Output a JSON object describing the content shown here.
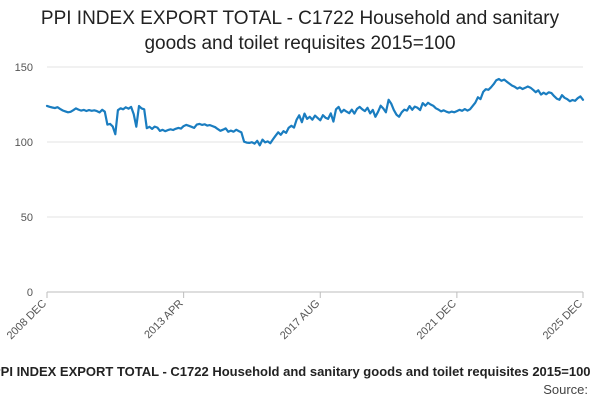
{
  "chart_data": {
    "type": "line",
    "title": "PPI INDEX EXPORT TOTAL - C1722 Household and sanitary goods and toilet requisites 2015=100",
    "xlabel": "",
    "ylabel": "",
    "ylim": [
      0,
      150
    ],
    "y_ticks": [
      0,
      50,
      100,
      150
    ],
    "x_range": [
      "2008-12",
      "2025-12"
    ],
    "x_ticks": [
      "2008 DEC",
      "2013 APR",
      "2017 AUG",
      "2021 DEC",
      "2025 DEC"
    ],
    "grid": "horizontal",
    "line_color": "#1a7dc0",
    "footer": "PPI INDEX EXPORT TOTAL - C1722 Household and sanitary goods and toilet requisites 2015=100",
    "source_label": "Source:",
    "series": [
      {
        "values": [
          [
            "2008-12",
            124.1
          ],
          [
            "2009-01",
            123.5
          ],
          [
            "2009-02",
            123.0
          ],
          [
            "2009-03",
            122.6
          ],
          [
            "2009-04",
            123.2
          ],
          [
            "2009-05",
            122.1
          ],
          [
            "2009-06",
            121.0
          ],
          [
            "2009-07",
            120.4
          ],
          [
            "2009-08",
            119.8
          ],
          [
            "2009-09",
            120.1
          ],
          [
            "2009-10",
            121.2
          ],
          [
            "2009-11",
            122.4
          ],
          [
            "2009-12",
            121.6
          ],
          [
            "2009-13",
            120.9
          ],
          [
            "2010-02",
            121.4
          ],
          [
            "2010-03",
            120.7
          ],
          [
            "2010-04",
            121.3
          ],
          [
            "2010-05",
            120.8
          ],
          [
            "2010-06",
            121.1
          ],
          [
            "2010-07",
            120.6
          ],
          [
            "2010-08",
            119.7
          ],
          [
            "2010-09",
            121.5
          ],
          [
            "2010-10",
            120.2
          ],
          [
            "2010-11",
            111.6
          ],
          [
            "2010-12",
            112.1
          ],
          [
            "2011-01",
            110.4
          ],
          [
            "2011-02",
            105.2
          ],
          [
            "2011-03",
            121.2
          ],
          [
            "2011-04",
            122.5
          ],
          [
            "2011-05",
            121.8
          ],
          [
            "2011-06",
            123.1
          ],
          [
            "2011-07",
            122.2
          ],
          [
            "2011-08",
            123.4
          ],
          [
            "2011-09",
            118.6
          ],
          [
            "2011-10",
            110.2
          ],
          [
            "2011-11",
            124.0
          ],
          [
            "2011-12",
            122.4
          ],
          [
            "2012-01",
            121.8
          ],
          [
            "2012-02",
            109.2
          ],
          [
            "2012-03",
            110.1
          ],
          [
            "2012-04",
            108.7
          ],
          [
            "2012-05",
            110.3
          ],
          [
            "2012-06",
            109.6
          ],
          [
            "2012-07",
            107.4
          ],
          [
            "2012-08",
            108.1
          ],
          [
            "2012-09",
            107.2
          ],
          [
            "2012-10",
            107.9
          ],
          [
            "2012-11",
            108.5
          ],
          [
            "2012-12",
            108.0
          ],
          [
            "2013-01",
            108.8
          ],
          [
            "2013-02",
            109.4
          ],
          [
            "2013-03",
            108.9
          ],
          [
            "2013-04",
            110.6
          ],
          [
            "2013-05",
            111.4
          ],
          [
            "2013-06",
            110.8
          ],
          [
            "2013-07",
            110.1
          ],
          [
            "2013-08",
            109.4
          ],
          [
            "2013-09",
            111.6
          ],
          [
            "2013-10",
            112.1
          ],
          [
            "2013-11",
            111.4
          ],
          [
            "2013-12",
            111.8
          ],
          [
            "2014-01",
            110.9
          ],
          [
            "2014-02",
            111.3
          ],
          [
            "2014-03",
            110.6
          ],
          [
            "2014-04",
            109.9
          ],
          [
            "2014-05",
            108.6
          ],
          [
            "2014-06",
            107.5
          ],
          [
            "2014-07",
            108.2
          ],
          [
            "2014-08",
            109.1
          ],
          [
            "2014-09",
            106.8
          ],
          [
            "2014-10",
            107.6
          ],
          [
            "2014-11",
            106.9
          ],
          [
            "2014-12",
            108.2
          ],
          [
            "2015-01",
            107.3
          ],
          [
            "2015-02",
            106.4
          ],
          [
            "2015-03",
            100.2
          ],
          [
            "2015-04",
            99.6
          ],
          [
            "2015-05",
            99.4
          ],
          [
            "2015-06",
            99.9
          ],
          [
            "2015-07",
            98.9
          ],
          [
            "2015-08",
            100.8
          ],
          [
            "2015-09",
            97.8
          ],
          [
            "2015-10",
            101.6
          ],
          [
            "2015-11",
            99.7
          ],
          [
            "2015-12",
            100.4
          ],
          [
            "2016-01",
            99.2
          ],
          [
            "2016-02",
            101.8
          ],
          [
            "2016-03",
            104.2
          ],
          [
            "2016-04",
            106.5
          ],
          [
            "2016-05",
            104.8
          ],
          [
            "2016-06",
            107.3
          ],
          [
            "2016-07",
            106.1
          ],
          [
            "2016-08",
            109.5
          ],
          [
            "2016-09",
            110.8
          ],
          [
            "2016-10",
            109.6
          ],
          [
            "2016-11",
            114.9
          ],
          [
            "2016-12",
            117.8
          ],
          [
            "2017-01",
            113.2
          ],
          [
            "2017-02",
            118.9
          ],
          [
            "2017-03",
            115.4
          ],
          [
            "2017-04",
            116.8
          ],
          [
            "2017-05",
            114.9
          ],
          [
            "2017-06",
            117.6
          ],
          [
            "2017-07",
            116.1
          ],
          [
            "2017-08",
            114.5
          ],
          [
            "2017-09",
            117.9
          ],
          [
            "2017-10",
            116.2
          ],
          [
            "2017-11",
            115.4
          ],
          [
            "2017-12",
            119.1
          ],
          [
            "2018-01",
            113.6
          ],
          [
            "2018-02",
            121.8
          ],
          [
            "2018-03",
            123.4
          ],
          [
            "2018-04",
            119.7
          ],
          [
            "2018-05",
            121.5
          ],
          [
            "2018-06",
            120.3
          ],
          [
            "2018-07",
            119.2
          ],
          [
            "2018-08",
            121.6
          ],
          [
            "2018-09",
            118.9
          ],
          [
            "2018-10",
            122.1
          ],
          [
            "2018-11",
            123.4
          ],
          [
            "2018-12",
            121.8
          ],
          [
            "2019-01",
            120.6
          ],
          [
            "2019-02",
            122.8
          ],
          [
            "2019-03",
            119.1
          ],
          [
            "2019-04",
            121.4
          ],
          [
            "2019-05",
            116.8
          ],
          [
            "2019-06",
            120.2
          ],
          [
            "2019-07",
            124.2
          ],
          [
            "2019-08",
            122.3
          ],
          [
            "2019-09",
            119.8
          ],
          [
            "2019-10",
            128.1
          ],
          [
            "2019-11",
            125.6
          ],
          [
            "2019-12",
            121.4
          ],
          [
            "2020-01",
            118.2
          ],
          [
            "2020-02",
            116.9
          ],
          [
            "2020-03",
            119.8
          ],
          [
            "2020-04",
            121.6
          ],
          [
            "2020-05",
            120.9
          ],
          [
            "2020-06",
            123.9
          ],
          [
            "2020-07",
            121.5
          ],
          [
            "2020-08",
            123.6
          ],
          [
            "2020-09",
            122.8
          ],
          [
            "2020-10",
            121.3
          ],
          [
            "2020-11",
            125.9
          ],
          [
            "2020-12",
            124.2
          ],
          [
            "2021-01",
            126.1
          ],
          [
            "2021-02",
            125.0
          ],
          [
            "2021-03",
            124.2
          ],
          [
            "2021-04",
            122.5
          ],
          [
            "2021-05",
            121.6
          ],
          [
            "2021-06",
            120.4
          ],
          [
            "2021-07",
            121.1
          ],
          [
            "2021-08",
            120.2
          ],
          [
            "2021-09",
            119.6
          ],
          [
            "2021-10",
            120.3
          ],
          [
            "2021-11",
            119.8
          ],
          [
            "2021-12",
            120.6
          ],
          [
            "2022-01",
            121.5
          ],
          [
            "2022-02",
            120.8
          ],
          [
            "2022-03",
            121.9
          ],
          [
            "2022-04",
            120.9
          ],
          [
            "2022-05",
            121.8
          ],
          [
            "2022-06",
            123.9
          ],
          [
            "2022-07",
            126.2
          ],
          [
            "2022-08",
            129.8
          ],
          [
            "2022-09",
            128.6
          ],
          [
            "2022-10",
            133.4
          ],
          [
            "2022-11",
            135.2
          ],
          [
            "2022-12",
            134.8
          ],
          [
            "2023-01",
            136.5
          ],
          [
            "2023-02",
            138.6
          ],
          [
            "2023-03",
            141.2
          ],
          [
            "2023-04",
            142.0
          ],
          [
            "2023-05",
            140.8
          ],
          [
            "2023-06",
            141.6
          ],
          [
            "2023-07",
            140.2
          ],
          [
            "2023-08",
            138.9
          ],
          [
            "2023-09",
            137.6
          ],
          [
            "2023-10",
            136.8
          ],
          [
            "2023-11",
            135.6
          ],
          [
            "2023-12",
            136.4
          ],
          [
            "2024-01",
            135.3
          ],
          [
            "2024-02",
            136.1
          ],
          [
            "2024-03",
            137.0
          ],
          [
            "2024-04",
            136.2
          ],
          [
            "2024-05",
            134.8
          ],
          [
            "2024-06",
            133.2
          ],
          [
            "2024-07",
            134.5
          ],
          [
            "2024-08",
            131.6
          ],
          [
            "2024-09",
            132.9
          ],
          [
            "2024-10",
            131.8
          ],
          [
            "2024-11",
            133.1
          ],
          [
            "2024-12",
            132.6
          ],
          [
            "2025-01",
            130.6
          ],
          [
            "2025-02",
            128.9
          ],
          [
            "2025-03",
            128.1
          ],
          [
            "2025-04",
            131.2
          ],
          [
            "2025-05",
            129.5
          ],
          [
            "2025-06",
            128.6
          ],
          [
            "2025-07",
            127.2
          ],
          [
            "2025-08",
            128.0
          ],
          [
            "2025-09",
            127.5
          ],
          [
            "2025-10",
            129.2
          ],
          [
            "2025-11",
            130.4
          ],
          [
            "2025-12",
            128.1
          ]
        ]
      }
    ]
  }
}
